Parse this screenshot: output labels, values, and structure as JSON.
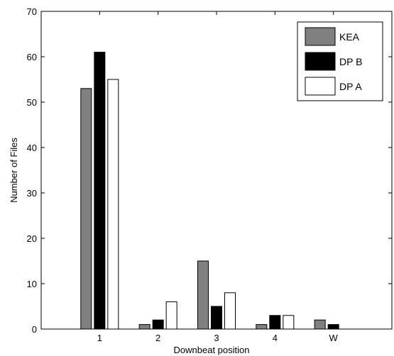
{
  "chart_data": {
    "type": "bar",
    "categories": [
      "1",
      "2",
      "3",
      "4",
      "W"
    ],
    "series": [
      {
        "name": "KEA",
        "values": [
          53,
          1,
          15,
          1,
          2
        ],
        "color": "#808080"
      },
      {
        "name": "DP B",
        "values": [
          61,
          2,
          5,
          3,
          1
        ],
        "color": "#000000"
      },
      {
        "name": "DP A",
        "values": [
          55,
          6,
          8,
          3,
          0
        ],
        "color": "#ffffff"
      }
    ],
    "xlabel": "Downbeat position",
    "ylabel": "Number of Files",
    "ylim": [
      0,
      70
    ],
    "yticks": [
      0,
      10,
      20,
      30,
      40,
      50,
      60,
      70
    ],
    "grid": false,
    "legend_position": "top-right"
  }
}
